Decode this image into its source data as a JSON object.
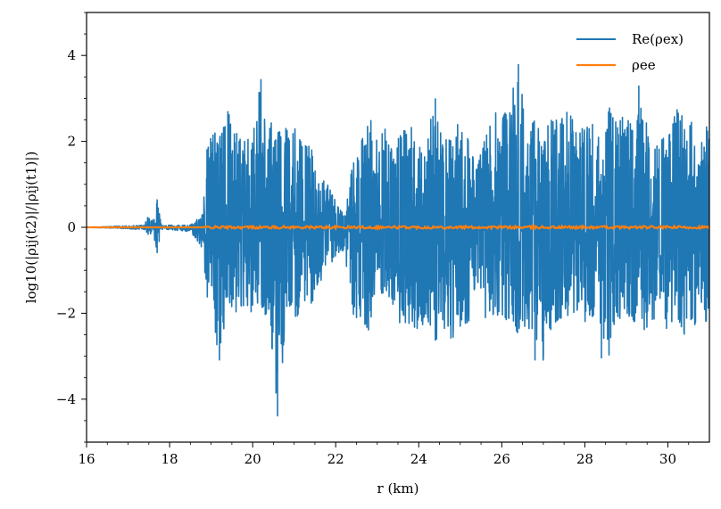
{
  "chart_data": {
    "type": "line",
    "xlabel": "r (km)",
    "ylabel": "log10(|ρij(t2)|/|ρij(t1)|)",
    "xlim": [
      16,
      31
    ],
    "ylim": [
      -5,
      5
    ],
    "x_ticks": [
      16,
      18,
      20,
      22,
      24,
      26,
      28,
      30
    ],
    "y_ticks": [
      -4,
      -2,
      0,
      2,
      4
    ],
    "x_tick_labels": [
      "16",
      "18",
      "20",
      "22",
      "24",
      "26",
      "28",
      "30"
    ],
    "y_tick_labels": [
      "−4",
      "−2",
      "0",
      "2",
      "4"
    ],
    "grid": false,
    "legend_position": "top-right",
    "series": [
      {
        "name": "Re(ρex)",
        "color": "#1f77b4",
        "note_envelope": "upper/lower envelope read from plot",
        "x": [
          16.0,
          17.4,
          17.5,
          17.6,
          17.7,
          17.8,
          18.0,
          18.5,
          18.8,
          18.9,
          19.0,
          19.2,
          19.4,
          19.6,
          19.8,
          20.0,
          20.2,
          20.4,
          20.6,
          20.8,
          21.0,
          21.2,
          21.4,
          21.6,
          21.8,
          22.0,
          22.2,
          22.4,
          22.6,
          22.8,
          23.0,
          23.2,
          23.4,
          23.6,
          23.8,
          24.0,
          24.2,
          24.4,
          24.6,
          24.8,
          25.0,
          25.2,
          25.4,
          25.6,
          25.8,
          26.0,
          26.2,
          26.4,
          26.6,
          26.8,
          27.0,
          27.2,
          27.4,
          27.6,
          27.8,
          28.0,
          28.2,
          28.4,
          28.6,
          28.8,
          29.0,
          29.2,
          29.4,
          29.6,
          29.8,
          30.0,
          30.2,
          30.4,
          30.6,
          30.8,
          31.0
        ],
        "upper": [
          0.0,
          0.05,
          0.35,
          0.1,
          0.65,
          0.05,
          0.05,
          0.05,
          0.3,
          1.8,
          2.1,
          2.3,
          2.7,
          2.2,
          2.0,
          2.1,
          3.45,
          2.5,
          2.2,
          2.3,
          2.5,
          1.9,
          2.0,
          1.2,
          1.0,
          0.6,
          0.3,
          1.4,
          2.0,
          2.7,
          2.0,
          2.3,
          2.2,
          2.2,
          2.4,
          2.3,
          2.2,
          3.0,
          2.1,
          2.0,
          2.6,
          2.0,
          1.3,
          2.3,
          2.8,
          2.5,
          2.9,
          3.8,
          2.2,
          2.5,
          2.0,
          2.7,
          2.4,
          2.9,
          2.3,
          2.3,
          2.4,
          2.0,
          2.8,
          2.4,
          2.7,
          2.1,
          3.3,
          1.5,
          2.2,
          2.1,
          2.8,
          2.5,
          2.5,
          2.4,
          2.3
        ],
        "lower": [
          0.0,
          -0.05,
          -0.2,
          -0.1,
          -0.6,
          -0.05,
          -0.05,
          -0.1,
          -0.5,
          -1.6,
          -1.9,
          -3.1,
          -1.7,
          -2.0,
          -1.8,
          -2.0,
          -2.0,
          -2.1,
          -4.4,
          -2.3,
          -2.3,
          -1.7,
          -1.8,
          -1.4,
          -0.8,
          -0.8,
          -0.5,
          -2.1,
          -2.1,
          -2.4,
          -1.5,
          -1.7,
          -1.8,
          -2.4,
          -2.2,
          -2.5,
          -2.1,
          -2.7,
          -2.4,
          -2.6,
          -2.3,
          -2.2,
          -1.5,
          -2.1,
          -2.1,
          -2.2,
          -2.1,
          -2.5,
          -2.3,
          -2.5,
          -3.1,
          -2.3,
          -2.1,
          -2.2,
          -2.2,
          -2.2,
          -2.4,
          -2.4,
          -3.05,
          -2.3,
          -2.1,
          -2.2,
          -2.7,
          -2.4,
          -1.6,
          -2.5,
          -2.0,
          -2.5,
          -2.4,
          -2.3,
          -2.1
        ]
      },
      {
        "name": "ρee",
        "color": "#ff7f0e",
        "x": [
          16,
          18,
          20,
          22,
          24,
          26,
          28,
          30,
          31
        ],
        "values": [
          0,
          0,
          0,
          0,
          0,
          0,
          0,
          0,
          0
        ]
      }
    ]
  }
}
